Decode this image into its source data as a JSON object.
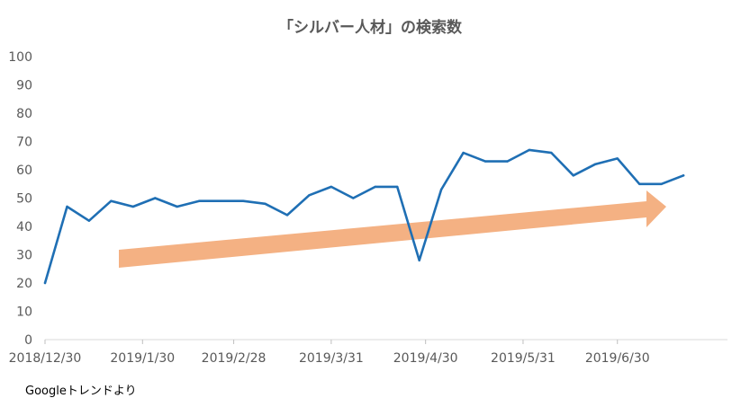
{
  "chart_data": {
    "type": "line",
    "title": "「シルバー人材」の検索数",
    "xlabel": "",
    "ylabel": "",
    "ylim": [
      0,
      100
    ],
    "yticks": [
      0,
      10,
      20,
      30,
      40,
      50,
      60,
      70,
      80,
      90,
      100
    ],
    "xlim": [
      "2018-12-30",
      "2019-08-04"
    ],
    "xtick_labels": [
      {
        "date": "2018-12-30",
        "label": "2018/12/30"
      },
      {
        "date": "2019-01-30",
        "label": "2019/1/30"
      },
      {
        "date": "2019-02-28",
        "label": "2019/2/28"
      },
      {
        "date": "2019-03-31",
        "label": "2019/3/31"
      },
      {
        "date": "2019-04-30",
        "label": "2019/4/30"
      },
      {
        "date": "2019-05-31",
        "label": "2019/5/31"
      },
      {
        "date": "2019-06-30",
        "label": "2019/6/30"
      }
    ],
    "grid": false,
    "legend": "none",
    "series": [
      {
        "color": "#1F6FB4",
        "x": [
          "2018-12-30",
          "2019-01-06",
          "2019-01-13",
          "2019-01-20",
          "2019-01-27",
          "2019-02-03",
          "2019-02-10",
          "2019-02-17",
          "2019-02-24",
          "2019-03-03",
          "2019-03-10",
          "2019-03-17",
          "2019-03-24",
          "2019-03-31",
          "2019-04-07",
          "2019-04-14",
          "2019-04-21",
          "2019-04-28",
          "2019-05-05",
          "2019-05-12",
          "2019-05-19",
          "2019-05-26",
          "2019-06-02",
          "2019-06-09",
          "2019-06-16",
          "2019-06-23",
          "2019-06-30",
          "2019-07-07",
          "2019-07-14",
          "2019-07-21"
        ],
        "values": [
          20,
          47,
          42,
          49,
          47,
          50,
          47,
          49,
          49,
          49,
          48,
          44,
          51,
          54,
          50,
          54,
          54,
          28,
          53,
          66,
          63,
          63,
          67,
          66,
          58,
          62,
          64,
          55,
          55,
          58
        ]
      }
    ],
    "annotation": {
      "type": "arrow",
      "meaning": "upward trend",
      "color": "#F4B183"
    },
    "source_note": "Googleトレンドより"
  }
}
